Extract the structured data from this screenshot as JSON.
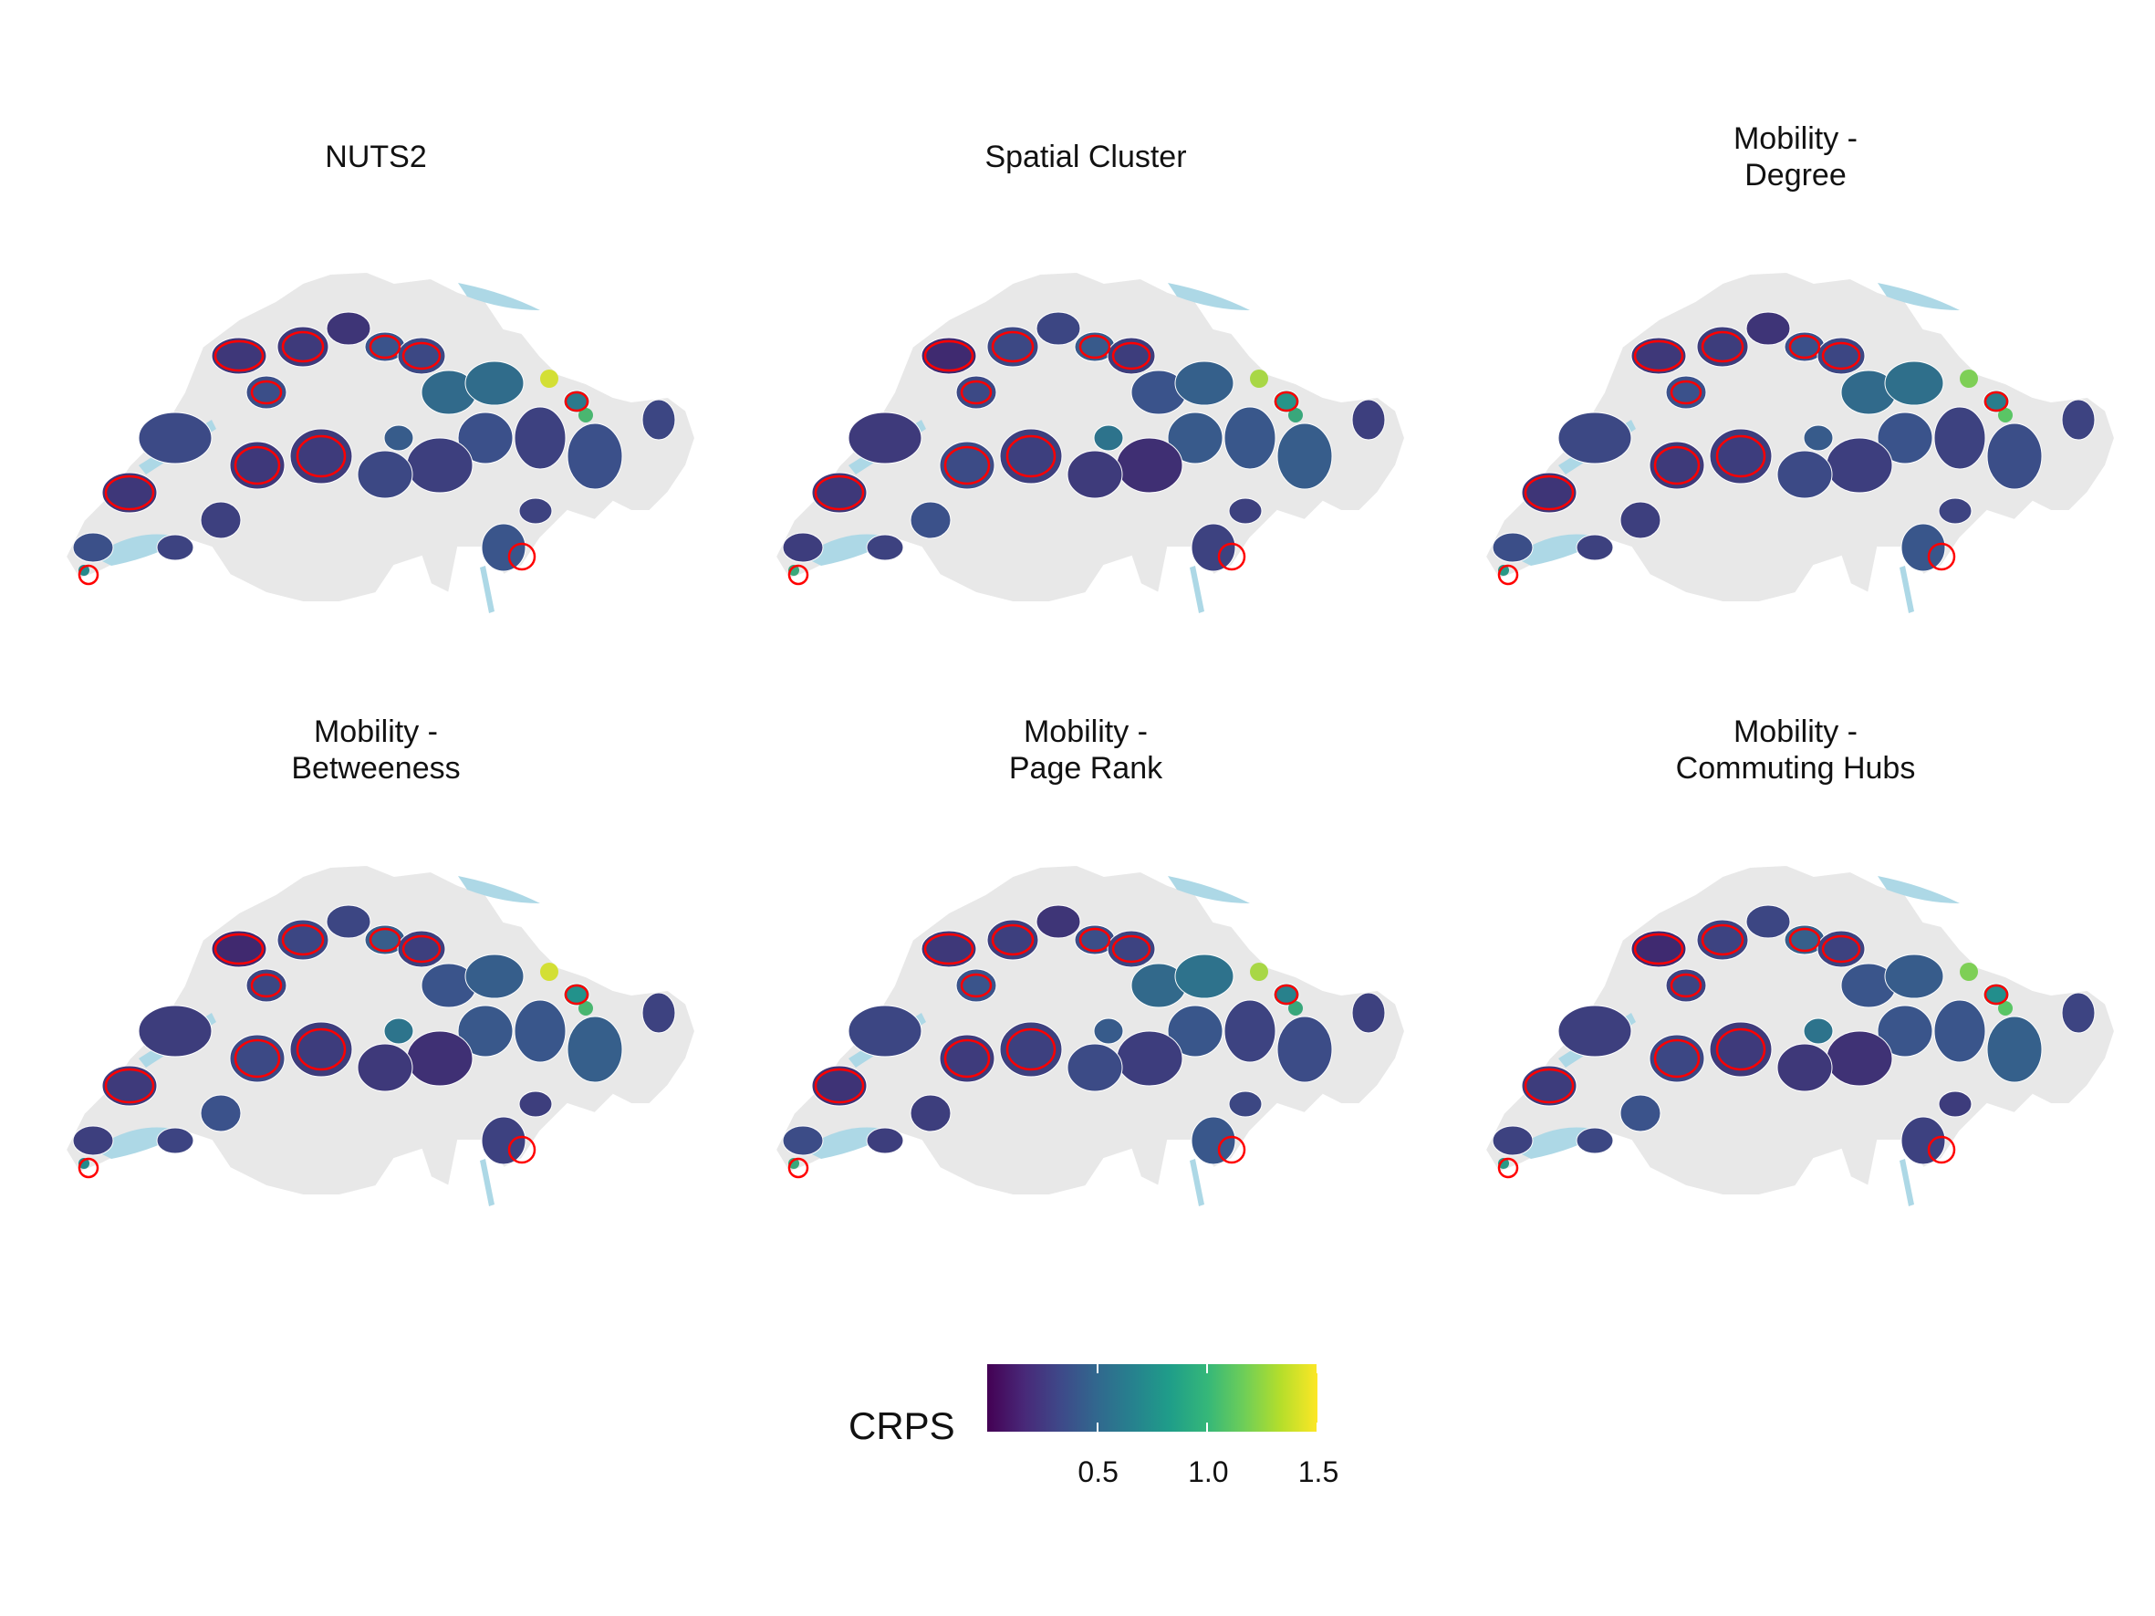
{
  "panels": [
    {
      "title": "NUTS2"
    },
    {
      "title": "Spatial Cluster"
    },
    {
      "title": "Mobility -\nDegree"
    },
    {
      "title": "Mobility -\nBetweeness"
    },
    {
      "title": "Mobility -\nPage Rank"
    },
    {
      "title": "Mobility -\nCommuting Hubs"
    }
  ],
  "legend": {
    "title": "CRPS",
    "ticks": [
      "0.5",
      "1.0",
      "1.5"
    ],
    "tick_values": [
      0.5,
      1.0,
      1.5
    ],
    "range": [
      0.0,
      1.5
    ],
    "palette": [
      "#440154",
      "#3e4989",
      "#26828e",
      "#35b779",
      "#fde725"
    ]
  },
  "colors": {
    "background_country": "#e8e8e8",
    "lake": "#add8e6",
    "highlight_border": "#ff0000",
    "low": "#3b2a6e",
    "high": "#f2e41c"
  }
}
